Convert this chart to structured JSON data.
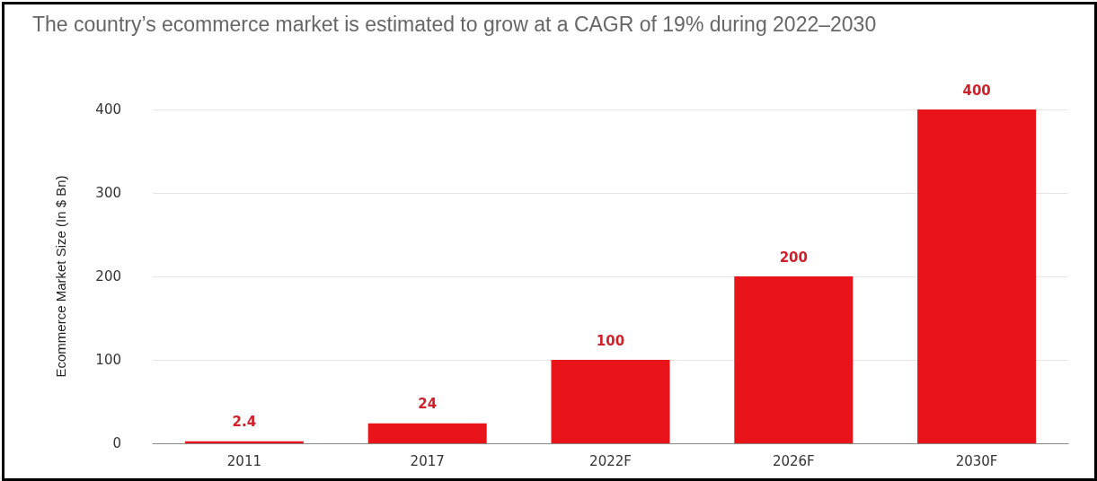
{
  "chart_data": {
    "type": "bar",
    "title": "The country’s ecommerce market is estimated to grow at a CAGR of 19% during 2022–2030",
    "ylabel": "Ecommerce Market Size (In $ Bn)",
    "categories": [
      "2011",
      "2017",
      "2022F",
      "2026F",
      "2030F"
    ],
    "values": [
      2.4,
      24,
      100,
      200,
      400
    ],
    "color": "#e8141a",
    "ylim": [
      0,
      400
    ],
    "yticks": [
      0,
      100,
      200,
      300,
      400
    ],
    "grid": "y",
    "data_labels": true
  }
}
